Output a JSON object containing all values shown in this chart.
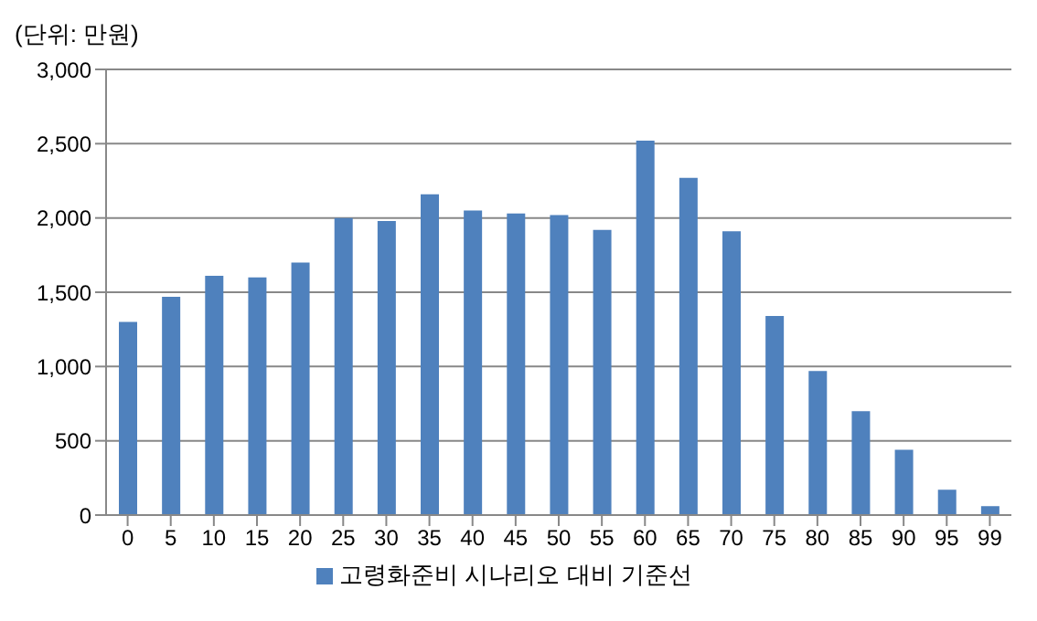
{
  "chart_data": {
    "type": "bar",
    "ylabel": "(단위: 만원)",
    "categories": [
      "0",
      "5",
      "10",
      "15",
      "20",
      "25",
      "30",
      "35",
      "40",
      "45",
      "50",
      "55",
      "60",
      "65",
      "70",
      "75",
      "80",
      "85",
      "90",
      "95",
      "99"
    ],
    "series": [
      {
        "name": "고령화준비 시나리오 대비 기준선",
        "color": "#4f81bd",
        "values": [
          1300,
          1470,
          1610,
          1600,
          1700,
          2000,
          1980,
          2160,
          2050,
          2030,
          2020,
          1920,
          2520,
          2270,
          1910,
          1340,
          970,
          700,
          440,
          170,
          60
        ]
      }
    ],
    "ylim": [
      0,
      3000
    ],
    "yticks": [
      {
        "value": 0,
        "label": "0"
      },
      {
        "value": 500,
        "label": "500"
      },
      {
        "value": 1000,
        "label": "1,000"
      },
      {
        "value": 1500,
        "label": "1,500"
      },
      {
        "value": 2000,
        "label": "2,000"
      },
      {
        "value": 2500,
        "label": "2,500"
      },
      {
        "value": 3000,
        "label": "3,000"
      }
    ],
    "grid": "y",
    "legend": "bottom"
  }
}
